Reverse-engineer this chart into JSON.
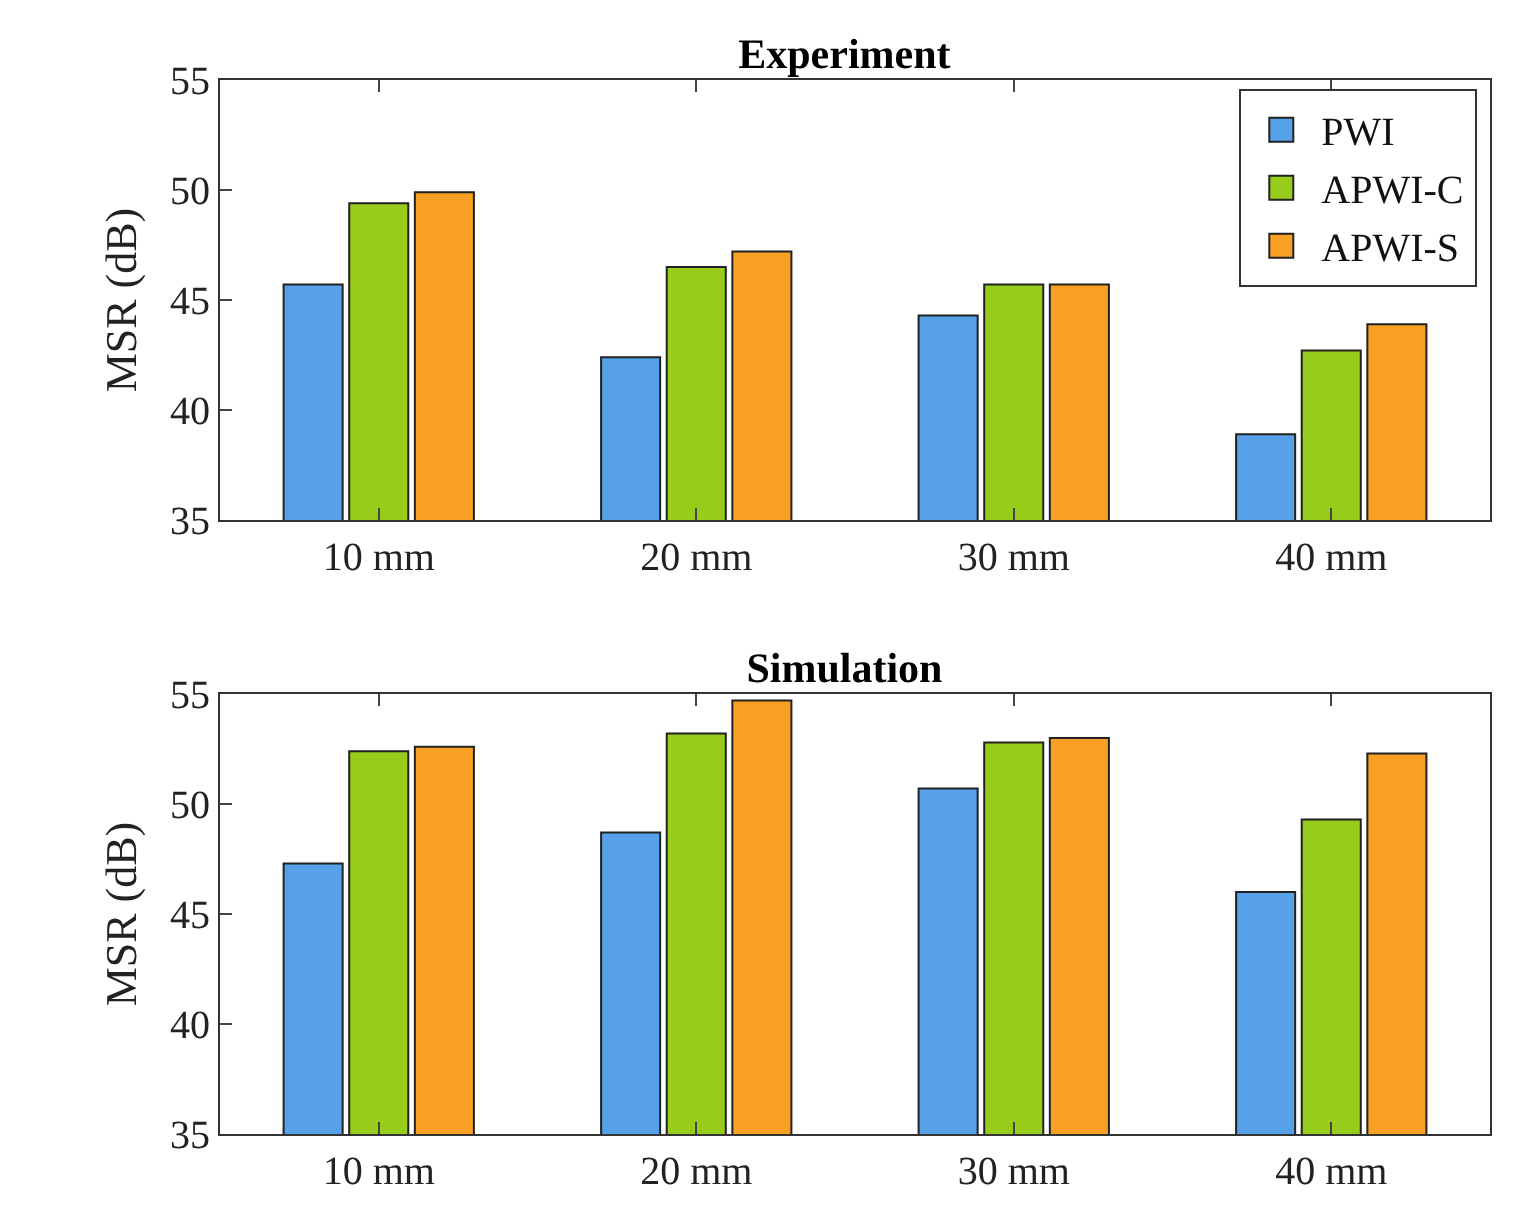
{
  "chart_data": [
    {
      "type": "bar",
      "title": "Experiment",
      "ylabel": "MSR (dB)",
      "categories": [
        "10 mm",
        "20 mm",
        "30 mm",
        "40 mm"
      ],
      "ylim": [
        35,
        55
      ],
      "yticks": [
        35,
        40,
        45,
        50,
        55
      ],
      "grid": false,
      "legend": "top right",
      "series": [
        {
          "name": "PWI",
          "color": "#55a0e6",
          "values": [
            45.7,
            42.4,
            44.3,
            38.9
          ]
        },
        {
          "name": "APWI-C",
          "color": "#98cc1c",
          "values": [
            49.4,
            46.5,
            45.7,
            42.7
          ]
        },
        {
          "name": "APWI-S",
          "color": "#f7a024",
          "values": [
            49.9,
            47.2,
            45.7,
            43.9
          ]
        }
      ]
    },
    {
      "type": "bar",
      "title": "Simulation",
      "ylabel": "MSR (dB)",
      "categories": [
        "10 mm",
        "20 mm",
        "30 mm",
        "40 mm"
      ],
      "ylim": [
        35,
        55
      ],
      "yticks": [
        35,
        40,
        45,
        50,
        55
      ],
      "grid": false,
      "legend": false,
      "series": [
        {
          "color": "#55a0e6",
          "values": [
            47.3,
            48.7,
            50.7,
            46.0
          ]
        },
        {
          "color": "#98cc1c",
          "values": [
            52.4,
            53.2,
            52.8,
            49.3
          ]
        },
        {
          "color": "#f7a024",
          "values": [
            52.6,
            54.7,
            53.0,
            52.3
          ]
        }
      ]
    }
  ]
}
